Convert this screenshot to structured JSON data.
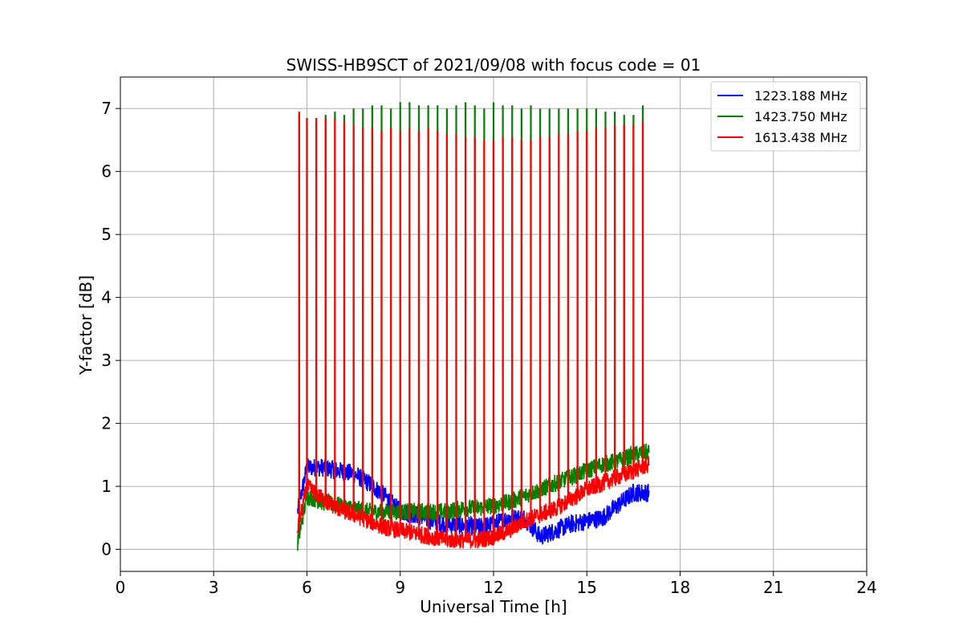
{
  "chart_data": {
    "type": "line",
    "title": "SWISS-HB9SCT of 2021/09/08 with focus code = 01",
    "xlabel": "Universal Time [h]",
    "ylabel": "Y-factor [dB]",
    "xlim": [
      0,
      24
    ],
    "ylim": [
      -0.35,
      7.5
    ],
    "xticks": [
      0,
      3,
      6,
      9,
      12,
      15,
      18,
      21,
      24
    ],
    "yticks": [
      0,
      1,
      2,
      3,
      4,
      5,
      6,
      7
    ],
    "grid": true,
    "legend_position": "top-right",
    "x": [
      5.7,
      6.0,
      6.5,
      7.0,
      7.5,
      8.0,
      8.5,
      9.0,
      9.5,
      10.0,
      10.5,
      11.0,
      11.5,
      12.0,
      12.5,
      13.0,
      13.5,
      14.0,
      14.5,
      15.0,
      15.5,
      16.0,
      16.5,
      17.0
    ],
    "series": [
      {
        "name": "1223.188 MHz",
        "color": "#0000ff",
        "values": [
          0.6,
          1.3,
          1.3,
          1.25,
          1.2,
          1.05,
          0.85,
          0.6,
          0.55,
          0.45,
          0.4,
          0.38,
          0.35,
          0.4,
          0.5,
          0.5,
          0.2,
          0.3,
          0.4,
          0.45,
          0.5,
          0.7,
          0.9,
          0.9
        ]
      },
      {
        "name": "1423.750 MHz",
        "color": "#008000",
        "values": [
          0.1,
          0.85,
          0.75,
          0.7,
          0.65,
          0.6,
          0.6,
          0.6,
          0.6,
          0.6,
          0.6,
          0.65,
          0.65,
          0.7,
          0.75,
          0.85,
          0.95,
          1.05,
          1.15,
          1.25,
          1.35,
          1.4,
          1.5,
          1.55
        ]
      },
      {
        "name": "1613.438 MHz",
        "color": "#ff0000",
        "values": [
          0.3,
          1.0,
          0.8,
          0.65,
          0.55,
          0.45,
          0.35,
          0.3,
          0.25,
          0.2,
          0.15,
          0.15,
          0.15,
          0.2,
          0.3,
          0.45,
          0.55,
          0.65,
          0.8,
          0.95,
          1.05,
          1.15,
          1.25,
          1.35
        ]
      }
    ],
    "spike_times": [
      5.75,
      6.0,
      6.3,
      6.6,
      6.9,
      7.2,
      7.5,
      7.8,
      8.1,
      8.4,
      8.7,
      9.0,
      9.3,
      9.6,
      9.9,
      10.2,
      10.5,
      10.8,
      11.1,
      11.4,
      11.7,
      12.0,
      12.3,
      12.6,
      12.9,
      13.2,
      13.5,
      13.8,
      14.1,
      14.4,
      14.7,
      15.0,
      15.3,
      15.6,
      15.9,
      16.2,
      16.5,
      16.8
    ],
    "spike_peaks_green": [
      6.9,
      6.85,
      6.85,
      6.9,
      6.95,
      6.9,
      7.0,
      7.0,
      7.05,
      7.05,
      7.0,
      7.1,
      7.1,
      7.05,
      7.05,
      7.05,
      7.0,
      7.05,
      7.1,
      7.05,
      7.0,
      7.1,
      7.05,
      7.05,
      7.0,
      7.05,
      7.0,
      7.0,
      7.0,
      7.0,
      7.0,
      7.0,
      7.0,
      6.95,
      6.95,
      6.9,
      6.9,
      7.05
    ],
    "spike_peaks_red": [
      6.95,
      6.85,
      6.85,
      6.85,
      6.85,
      6.8,
      6.75,
      6.7,
      6.7,
      6.65,
      6.7,
      6.65,
      6.7,
      6.65,
      6.7,
      6.65,
      6.6,
      6.6,
      6.55,
      6.55,
      6.5,
      6.5,
      6.55,
      6.55,
      6.5,
      6.5,
      6.55,
      6.55,
      6.6,
      6.6,
      6.65,
      6.65,
      6.7,
      6.7,
      6.75,
      6.75,
      6.75,
      6.8
    ]
  }
}
